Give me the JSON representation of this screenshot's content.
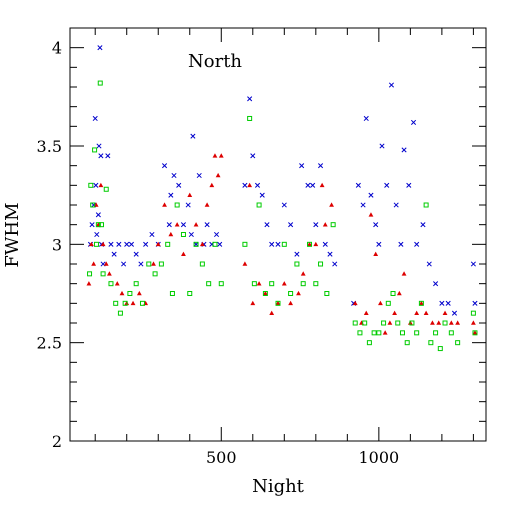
{
  "chart_data": {
    "type": "scatter",
    "title": "",
    "annotation": "North",
    "xlabel": "Night",
    "ylabel": "FWHM",
    "xlim": [
      20,
      1340
    ],
    "ylim": [
      2,
      4.1
    ],
    "x_ticks": [
      500,
      1000
    ],
    "x_tick_labels": [
      "500",
      "1000"
    ],
    "y_ticks": [
      2,
      2.5,
      3,
      3.5,
      4
    ],
    "y_tick_labels": [
      "2",
      "2.5",
      "3",
      "3.5",
      "4"
    ],
    "grid": false,
    "legend": "none",
    "series": [
      {
        "marker": "x",
        "color": "#0000cc",
        "points": [
          [
            85,
            3.0
          ],
          [
            90,
            3.1
          ],
          [
            95,
            3.2
          ],
          [
            100,
            3.64
          ],
          [
            102,
            3.3
          ],
          [
            105,
            3.05
          ],
          [
            110,
            3.15
          ],
          [
            112,
            3.5
          ],
          [
            115,
            4.0
          ],
          [
            118,
            3.45
          ],
          [
            120,
            3.0
          ],
          [
            125,
            2.9
          ],
          [
            140,
            3.45
          ],
          [
            150,
            3.0
          ],
          [
            160,
            2.95
          ],
          [
            175,
            3.0
          ],
          [
            190,
            2.9
          ],
          [
            200,
            3.0
          ],
          [
            215,
            3.0
          ],
          [
            230,
            2.95
          ],
          [
            245,
            2.9
          ],
          [
            260,
            3.0
          ],
          [
            280,
            3.05
          ],
          [
            300,
            3.0
          ],
          [
            320,
            3.4
          ],
          [
            335,
            3.1
          ],
          [
            340,
            3.25
          ],
          [
            350,
            3.35
          ],
          [
            365,
            3.3
          ],
          [
            380,
            3.1
          ],
          [
            395,
            3.2
          ],
          [
            405,
            3.05
          ],
          [
            410,
            3.55
          ],
          [
            420,
            3.0
          ],
          [
            430,
            3.35
          ],
          [
            445,
            3.0
          ],
          [
            455,
            3.1
          ],
          [
            470,
            3.0
          ],
          [
            485,
            3.05
          ],
          [
            495,
            3.0
          ],
          [
            575,
            3.3
          ],
          [
            590,
            3.74
          ],
          [
            600,
            3.45
          ],
          [
            615,
            3.3
          ],
          [
            630,
            3.25
          ],
          [
            645,
            3.1
          ],
          [
            660,
            3.0
          ],
          [
            680,
            3.0
          ],
          [
            700,
            3.2
          ],
          [
            720,
            3.1
          ],
          [
            740,
            2.95
          ],
          [
            755,
            3.4
          ],
          [
            775,
            3.3
          ],
          [
            790,
            3.3
          ],
          [
            800,
            3.1
          ],
          [
            815,
            3.4
          ],
          [
            830,
            3.0
          ],
          [
            845,
            2.95
          ],
          [
            860,
            2.9
          ],
          [
            920,
            2.7
          ],
          [
            935,
            3.3
          ],
          [
            950,
            3.2
          ],
          [
            960,
            3.64
          ],
          [
            975,
            3.25
          ],
          [
            990,
            3.1
          ],
          [
            1000,
            3.0
          ],
          [
            1010,
            3.5
          ],
          [
            1025,
            3.3
          ],
          [
            1040,
            3.81
          ],
          [
            1055,
            3.2
          ],
          [
            1070,
            3.0
          ],
          [
            1080,
            3.48
          ],
          [
            1095,
            3.3
          ],
          [
            1110,
            3.62
          ],
          [
            1120,
            3.0
          ],
          [
            1140,
            3.1
          ],
          [
            1160,
            2.9
          ],
          [
            1180,
            2.8
          ],
          [
            1200,
            2.7
          ],
          [
            1220,
            2.7
          ],
          [
            1240,
            2.65
          ],
          [
            1300,
            2.9
          ],
          [
            1305,
            2.7
          ]
        ]
      },
      {
        "marker": "triangle",
        "color": "#dd0000",
        "points": [
          [
            80,
            2.8
          ],
          [
            88,
            3.0
          ],
          [
            95,
            2.9
          ],
          [
            103,
            3.2
          ],
          [
            110,
            3.1
          ],
          [
            118,
            3.3
          ],
          [
            125,
            3.0
          ],
          [
            135,
            2.9
          ],
          [
            145,
            2.85
          ],
          [
            170,
            2.8
          ],
          [
            185,
            2.75
          ],
          [
            200,
            2.7
          ],
          [
            220,
            2.7
          ],
          [
            240,
            2.75
          ],
          [
            260,
            2.7
          ],
          [
            285,
            2.9
          ],
          [
            300,
            3.0
          ],
          [
            320,
            3.2
          ],
          [
            340,
            3.05
          ],
          [
            360,
            3.1
          ],
          [
            380,
            2.95
          ],
          [
            400,
            3.25
          ],
          [
            420,
            3.1
          ],
          [
            440,
            3.0
          ],
          [
            455,
            3.2
          ],
          [
            470,
            3.3
          ],
          [
            480,
            3.45
          ],
          [
            490,
            3.35
          ],
          [
            500,
            3.45
          ],
          [
            575,
            2.9
          ],
          [
            590,
            3.3
          ],
          [
            600,
            2.7
          ],
          [
            620,
            2.8
          ],
          [
            640,
            2.75
          ],
          [
            660,
            2.65
          ],
          [
            680,
            2.7
          ],
          [
            700,
            2.8
          ],
          [
            720,
            2.7
          ],
          [
            745,
            2.75
          ],
          [
            760,
            2.85
          ],
          [
            780,
            3.0
          ],
          [
            800,
            3.0
          ],
          [
            820,
            3.3
          ],
          [
            830,
            3.1
          ],
          [
            850,
            3.2
          ],
          [
            925,
            2.7
          ],
          [
            945,
            2.6
          ],
          [
            960,
            2.65
          ],
          [
            975,
            3.15
          ],
          [
            990,
            2.95
          ],
          [
            1005,
            2.7
          ],
          [
            1020,
            2.55
          ],
          [
            1035,
            2.6
          ],
          [
            1050,
            2.65
          ],
          [
            1065,
            2.75
          ],
          [
            1080,
            2.85
          ],
          [
            1100,
            2.6
          ],
          [
            1120,
            2.65
          ],
          [
            1135,
            2.7
          ],
          [
            1150,
            2.65
          ],
          [
            1170,
            2.6
          ],
          [
            1190,
            2.6
          ],
          [
            1210,
            2.65
          ],
          [
            1230,
            2.6
          ],
          [
            1250,
            2.6
          ],
          [
            1300,
            2.6
          ],
          [
            1305,
            2.55
          ]
        ]
      },
      {
        "marker": "square",
        "color": "#00cc00",
        "points": [
          [
            82,
            2.85
          ],
          [
            86,
            3.3
          ],
          [
            92,
            3.2
          ],
          [
            98,
            3.48
          ],
          [
            104,
            3.0
          ],
          [
            110,
            3.1
          ],
          [
            116,
            3.82
          ],
          [
            120,
            3.1
          ],
          [
            125,
            2.85
          ],
          [
            135,
            3.28
          ],
          [
            150,
            2.8
          ],
          [
            165,
            2.7
          ],
          [
            180,
            2.65
          ],
          [
            195,
            2.7
          ],
          [
            210,
            2.75
          ],
          [
            230,
            2.8
          ],
          [
            250,
            2.7
          ],
          [
            270,
            2.9
          ],
          [
            290,
            2.85
          ],
          [
            310,
            2.9
          ],
          [
            330,
            3.0
          ],
          [
            345,
            2.75
          ],
          [
            360,
            3.2
          ],
          [
            380,
            3.05
          ],
          [
            400,
            2.75
          ],
          [
            420,
            3.0
          ],
          [
            440,
            2.9
          ],
          [
            460,
            2.8
          ],
          [
            480,
            3.0
          ],
          [
            500,
            2.8
          ],
          [
            575,
            3.0
          ],
          [
            590,
            3.64
          ],
          [
            605,
            2.8
          ],
          [
            620,
            3.2
          ],
          [
            640,
            2.75
          ],
          [
            660,
            2.8
          ],
          [
            680,
            2.7
          ],
          [
            700,
            3.0
          ],
          [
            720,
            2.75
          ],
          [
            740,
            2.9
          ],
          [
            760,
            2.8
          ],
          [
            780,
            3.0
          ],
          [
            800,
            2.8
          ],
          [
            815,
            2.9
          ],
          [
            835,
            2.75
          ],
          [
            855,
            3.1
          ],
          [
            925,
            2.6
          ],
          [
            940,
            2.55
          ],
          [
            955,
            2.6
          ],
          [
            970,
            2.5
          ],
          [
            985,
            2.55
          ],
          [
            1000,
            2.55
          ],
          [
            1015,
            2.6
          ],
          [
            1030,
            2.7
          ],
          [
            1045,
            2.75
          ],
          [
            1060,
            2.6
          ],
          [
            1075,
            2.55
          ],
          [
            1090,
            2.5
          ],
          [
            1105,
            2.6
          ],
          [
            1120,
            2.55
          ],
          [
            1135,
            2.7
          ],
          [
            1150,
            3.2
          ],
          [
            1165,
            2.5
          ],
          [
            1180,
            2.55
          ],
          [
            1195,
            2.47
          ],
          [
            1210,
            2.6
          ],
          [
            1230,
            2.55
          ],
          [
            1250,
            2.5
          ],
          [
            1300,
            2.65
          ],
          [
            1305,
            2.55
          ]
        ]
      }
    ]
  }
}
